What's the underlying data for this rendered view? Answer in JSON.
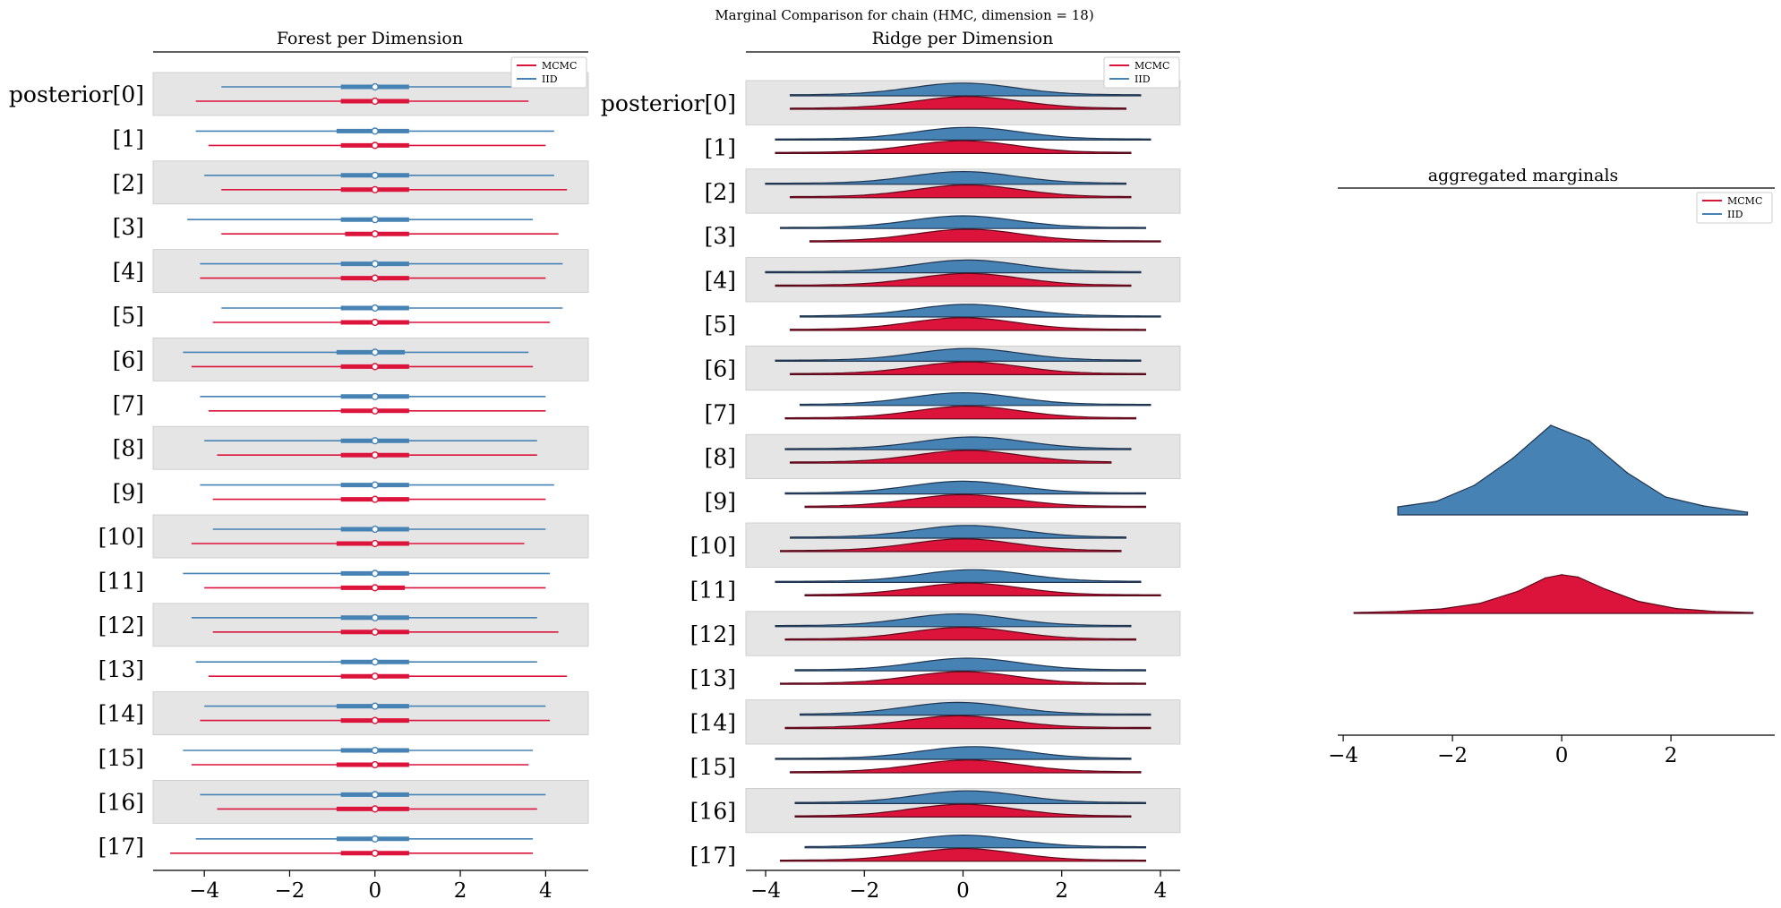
{
  "suptitle": "Marginal Comparison for chain (HMC, dimension = 18)",
  "colors": {
    "mcmc": "#dc143c",
    "mcmc_dark": "#c0103a",
    "iid": "#4682b4",
    "iid_dark": "#3b6e9c",
    "band": "#e5e5e5"
  },
  "chart_data": [
    {
      "type": "forest",
      "title": "Forest per Dimension",
      "legend": [
        "MCMC",
        "IID"
      ],
      "legend_position": "top-right",
      "xticks": [
        -4,
        -2,
        0,
        2,
        4
      ],
      "xlim": [
        -5.2,
        5.0
      ],
      "labels": [
        "posterior[0]",
        "[1]",
        "[2]",
        "[3]",
        "[4]",
        "[5]",
        "[6]",
        "[7]",
        "[8]",
        "[9]",
        "[10]",
        "[11]",
        "[12]",
        "[13]",
        "[14]",
        "[15]",
        "[16]",
        "[17]"
      ],
      "series": [
        {
          "name": "IID",
          "low": [
            -3.6,
            -4.2,
            -4.0,
            -4.4,
            -4.1,
            -3.6,
            -4.5,
            -4.1,
            -4.0,
            -4.1,
            -3.8,
            -4.5,
            -4.3,
            -4.2,
            -4.0,
            -4.5,
            -4.1,
            -4.2
          ],
          "high": [
            3.8,
            4.2,
            4.2,
            3.7,
            4.4,
            4.4,
            3.6,
            4.0,
            3.8,
            4.2,
            4.0,
            4.1,
            3.8,
            3.8,
            4.0,
            3.7,
            4.0,
            3.7
          ],
          "q1": [
            -0.8,
            -0.9,
            -0.8,
            -0.8,
            -0.8,
            -0.8,
            -0.9,
            -0.8,
            -0.8,
            -0.8,
            -0.8,
            -0.8,
            -0.8,
            -0.8,
            -0.9,
            -0.8,
            -0.8,
            -0.9
          ],
          "q3": [
            0.8,
            0.8,
            0.8,
            0.8,
            0.8,
            0.8,
            0.7,
            0.8,
            0.8,
            0.8,
            0.8,
            0.8,
            0.8,
            0.8,
            0.8,
            0.8,
            0.8,
            0.8
          ],
          "median": [
            0.0,
            0.0,
            0.0,
            0.0,
            0.0,
            0.0,
            0.0,
            0.0,
            0.0,
            0.0,
            0.0,
            0.0,
            0.0,
            0.0,
            0.0,
            0.0,
            0.0,
            0.0
          ]
        },
        {
          "name": "MCMC",
          "low": [
            -4.2,
            -3.9,
            -3.6,
            -3.6,
            -4.1,
            -3.8,
            -4.3,
            -3.9,
            -3.7,
            -3.8,
            -4.3,
            -4.0,
            -3.8,
            -3.9,
            -4.1,
            -4.3,
            -3.7,
            -4.8
          ],
          "high": [
            3.6,
            4.0,
            4.5,
            4.3,
            4.0,
            4.1,
            3.7,
            4.0,
            3.8,
            4.0,
            3.5,
            4.0,
            4.3,
            4.5,
            4.1,
            3.6,
            3.8,
            3.7
          ],
          "q1": [
            -0.8,
            -0.8,
            -0.8,
            -0.7,
            -0.8,
            -0.8,
            -0.8,
            -0.8,
            -0.8,
            -0.8,
            -0.9,
            -0.8,
            -0.8,
            -0.8,
            -0.8,
            -0.9,
            -0.9,
            -0.8
          ],
          "q3": [
            0.8,
            0.8,
            0.8,
            0.8,
            0.8,
            0.8,
            0.8,
            0.8,
            0.8,
            0.8,
            0.8,
            0.7,
            0.8,
            0.8,
            0.8,
            0.8,
            0.8,
            0.8
          ],
          "median": [
            0.0,
            0.0,
            0.0,
            0.0,
            0.0,
            0.0,
            0.0,
            0.0,
            0.0,
            0.0,
            0.0,
            0.0,
            0.0,
            0.0,
            0.0,
            0.0,
            0.0,
            0.0
          ]
        }
      ]
    },
    {
      "type": "ridge",
      "title": "Ridge per Dimension",
      "legend": [
        "MCMC",
        "IID"
      ],
      "legend_position": "top-right",
      "xticks": [
        -4,
        -2,
        0,
        2,
        4
      ],
      "xlim": [
        -4.4,
        4.4
      ],
      "labels": [
        "posterior[0]",
        "[1]",
        "[2]",
        "[3]",
        "[4]",
        "[5]",
        "[6]",
        "[7]",
        "[8]",
        "[9]",
        "[10]",
        "[11]",
        "[12]",
        "[13]",
        "[14]",
        "[15]",
        "[16]",
        "[17]"
      ],
      "series": [
        {
          "name": "IID",
          "low": [
            -3.5,
            -3.8,
            -4.0,
            -3.7,
            -4.0,
            -3.3,
            -3.8,
            -3.3,
            -3.6,
            -3.6,
            -3.5,
            -3.8,
            -3.8,
            -3.4,
            -3.3,
            -3.8,
            -3.4,
            -3.2
          ],
          "high": [
            3.6,
            3.8,
            3.3,
            3.7,
            3.6,
            4.0,
            3.6,
            3.8,
            3.4,
            3.7,
            3.3,
            3.6,
            3.4,
            3.7,
            3.8,
            3.4,
            3.7,
            3.7
          ],
          "peak": [
            0.0,
            0.1,
            0.0,
            0.0,
            0.1,
            0.1,
            0.1,
            0.0,
            0.2,
            0.0,
            0.1,
            0.2,
            -0.1,
            0.1,
            -0.1,
            0.2,
            0.1,
            0.0
          ]
        },
        {
          "name": "MCMC",
          "low": [
            -3.5,
            -3.8,
            -3.5,
            -3.1,
            -3.8,
            -3.5,
            -3.5,
            -3.6,
            -3.5,
            -3.2,
            -3.7,
            -3.2,
            -3.6,
            -3.7,
            -3.6,
            -3.5,
            -3.4,
            -3.7
          ],
          "high": [
            3.3,
            3.4,
            3.4,
            4.0,
            3.4,
            3.7,
            3.7,
            3.5,
            3.0,
            3.7,
            3.2,
            4.0,
            3.5,
            3.7,
            3.8,
            3.6,
            3.4,
            3.7
          ],
          "peak": [
            0.1,
            0.0,
            0.1,
            0.1,
            0.1,
            0.0,
            0.1,
            0.1,
            0.1,
            0.0,
            0.0,
            0.1,
            0.0,
            0.0,
            -0.1,
            0.1,
            0.0,
            0.0
          ]
        }
      ]
    },
    {
      "type": "area",
      "title": "aggregated marginals",
      "legend": [
        "MCMC",
        "IID"
      ],
      "legend_position": "top-right",
      "xticks": [
        -4,
        -2,
        0,
        2
      ],
      "xlim": [
        -4.1,
        3.9
      ],
      "series": [
        {
          "name": "IID",
          "x": [
            -3.0,
            -2.3,
            -1.6,
            -0.9,
            -0.2,
            0.5,
            1.2,
            1.9,
            2.6,
            3.4
          ],
          "y": [
            0.09,
            0.15,
            0.33,
            0.63,
            1.0,
            0.83,
            0.47,
            0.2,
            0.1,
            0.03
          ]
        },
        {
          "name": "MCMC",
          "x": [
            -3.8,
            -3.0,
            -2.2,
            -1.5,
            -0.8,
            -0.3,
            0.0,
            0.3,
            0.8,
            1.4,
            2.1,
            2.8,
            3.5
          ],
          "y": [
            0.02,
            0.05,
            0.11,
            0.25,
            0.55,
            0.88,
            0.96,
            0.9,
            0.6,
            0.3,
            0.12,
            0.05,
            0.02
          ]
        }
      ]
    }
  ]
}
